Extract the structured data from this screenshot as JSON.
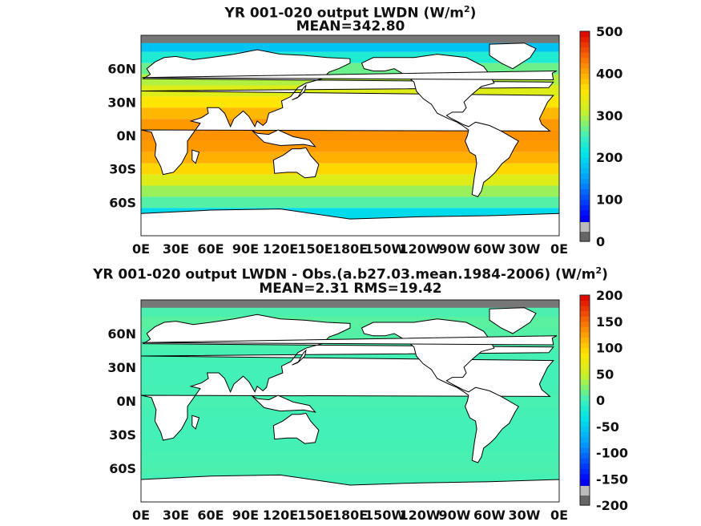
{
  "chart_data": [
    {
      "type": "heatmap",
      "title_main": "YR 001-020 output LWDN (W/m",
      "title_sup": "2",
      "title_end": ")",
      "subtitle": "MEAN=342.80",
      "x_ticks": [
        "0E",
        "30E",
        "60E",
        "90E",
        "120E",
        "150E",
        "180E",
        "150W",
        "120W",
        "90W",
        "60W",
        "30W",
        "0E"
      ],
      "y_ticks": [
        "60N",
        "30N",
        "0N",
        "30S",
        "60S"
      ],
      "y_tick_values": [
        60,
        30,
        0,
        -30,
        -60
      ],
      "ylim": [
        -90,
        90
      ],
      "colorbar": {
        "min": 0,
        "max": 500,
        "ticks": [
          0,
          100,
          200,
          300,
          400,
          500
        ]
      },
      "field": {
        "description_bands_lat": [
          80,
          70,
          60,
          50,
          40,
          30,
          20,
          10,
          0,
          -10,
          -20,
          -30,
          -40,
          -50,
          -60,
          -70
        ],
        "values": [
          180,
          230,
          270,
          300,
          330,
          360,
          390,
          410,
          415,
          410,
          395,
          370,
          330,
          290,
          260,
          200
        ]
      }
    },
    {
      "type": "heatmap",
      "title_main": "YR 001-020 output LWDN - Obs.(a.b27.03.mean.1984-2006) (W/m",
      "title_sup": "2",
      "title_end": ")",
      "subtitle": "MEAN=2.31 RMS=19.42",
      "x_ticks": [
        "0E",
        "30E",
        "60E",
        "90E",
        "120E",
        "150E",
        "180E",
        "150W",
        "120W",
        "90W",
        "60W",
        "30W",
        "0E"
      ],
      "y_ticks": [
        "60N",
        "30N",
        "0N",
        "30S",
        "60S"
      ],
      "y_tick_values": [
        60,
        30,
        0,
        -30,
        -60
      ],
      "ylim": [
        -90,
        90
      ],
      "colorbar": {
        "min": -200,
        "max": 200,
        "ticks": [
          -200,
          -150,
          -100,
          -50,
          0,
          50,
          100,
          150,
          200
        ]
      },
      "field": {
        "description_bands_lat": [
          80,
          70,
          60,
          50,
          40,
          30,
          20,
          10,
          0,
          -10,
          -20,
          -30,
          -40,
          -50,
          -60,
          -70
        ],
        "values": [
          5,
          10,
          8,
          5,
          3,
          2,
          2,
          3,
          4,
          3,
          2,
          2,
          3,
          4,
          5,
          3
        ]
      }
    }
  ]
}
